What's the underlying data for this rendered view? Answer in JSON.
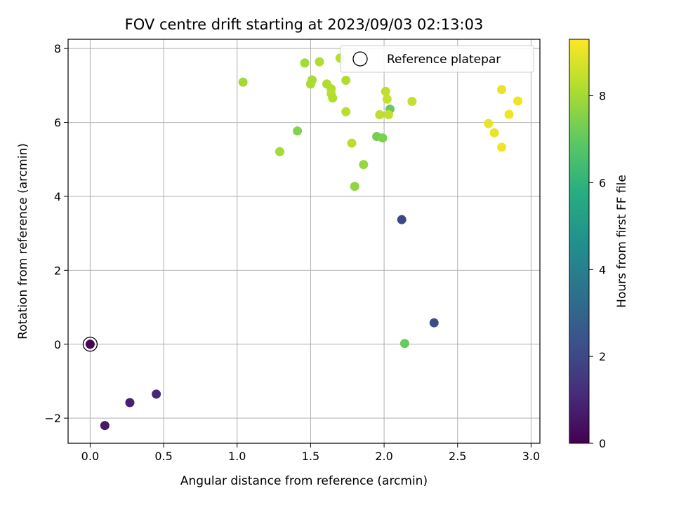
{
  "chart_data": {
    "type": "scatter",
    "title": "FOV centre drift starting at 2023/09/03 02:13:03",
    "xlabel": "Angular distance from reference (arcmin)",
    "ylabel": "Rotation from reference (arcmin)",
    "xlim": [
      -0.15,
      3.06
    ],
    "ylim": [
      -2.68,
      8.25
    ],
    "xticks": [
      "0.0",
      "0.5",
      "1.0",
      "1.5",
      "2.0",
      "2.5",
      "3.0"
    ],
    "yticks": [
      "−2",
      "0",
      "2",
      "4",
      "6",
      "8"
    ],
    "grid": true,
    "legend": {
      "position": "top-right",
      "entries": [
        "Reference platepar"
      ]
    },
    "reference_point": {
      "x": 0.0,
      "y": 0.0
    },
    "colorbar": {
      "label": "Hours from first FF file",
      "colormap": "viridis",
      "range": [
        0,
        9.3
      ],
      "ticks": [
        "0",
        "2",
        "4",
        "6",
        "8"
      ]
    },
    "points": [
      {
        "x": 0.0,
        "y": 0.0,
        "c": 0.1
      },
      {
        "x": 0.1,
        "y": -2.2,
        "c": 0.6
      },
      {
        "x": 0.27,
        "y": -1.58,
        "c": 0.8
      },
      {
        "x": 0.45,
        "y": -1.35,
        "c": 1.0
      },
      {
        "x": 2.12,
        "y": 3.37,
        "c": 2.0
      },
      {
        "x": 2.34,
        "y": 0.58,
        "c": 2.1
      },
      {
        "x": 2.14,
        "y": 0.02,
        "c": 7.1
      },
      {
        "x": 2.04,
        "y": 6.36,
        "c": 7.1
      },
      {
        "x": 1.95,
        "y": 5.62,
        "c": 7.3
      },
      {
        "x": 1.99,
        "y": 5.58,
        "c": 7.4
      },
      {
        "x": 1.41,
        "y": 5.77,
        "c": 7.5
      },
      {
        "x": 1.8,
        "y": 4.27,
        "c": 7.7
      },
      {
        "x": 1.86,
        "y": 4.86,
        "c": 7.8
      },
      {
        "x": 1.29,
        "y": 5.21,
        "c": 8.0
      },
      {
        "x": 1.04,
        "y": 7.09,
        "c": 8.0
      },
      {
        "x": 1.46,
        "y": 7.61,
        "c": 8.0
      },
      {
        "x": 1.5,
        "y": 7.04,
        "c": 8.1
      },
      {
        "x": 1.51,
        "y": 7.15,
        "c": 8.1
      },
      {
        "x": 1.56,
        "y": 7.64,
        "c": 8.2
      },
      {
        "x": 1.61,
        "y": 7.04,
        "c": 8.2
      },
      {
        "x": 1.64,
        "y": 6.91,
        "c": 8.2
      },
      {
        "x": 1.64,
        "y": 6.78,
        "c": 8.3
      },
      {
        "x": 1.65,
        "y": 6.66,
        "c": 8.2
      },
      {
        "x": 1.7,
        "y": 7.74,
        "c": 8.3
      },
      {
        "x": 1.74,
        "y": 7.14,
        "c": 8.2
      },
      {
        "x": 1.74,
        "y": 6.29,
        "c": 8.3
      },
      {
        "x": 1.78,
        "y": 5.44,
        "c": 8.3
      },
      {
        "x": 1.97,
        "y": 6.21,
        "c": 8.4
      },
      {
        "x": 2.01,
        "y": 6.84,
        "c": 8.4
      },
      {
        "x": 2.02,
        "y": 6.63,
        "c": 8.5
      },
      {
        "x": 2.03,
        "y": 6.21,
        "c": 8.5
      },
      {
        "x": 2.19,
        "y": 6.57,
        "c": 8.5
      },
      {
        "x": 2.71,
        "y": 5.97,
        "c": 9.0
      },
      {
        "x": 2.75,
        "y": 5.72,
        "c": 9.0
      },
      {
        "x": 2.8,
        "y": 6.89,
        "c": 9.0
      },
      {
        "x": 2.8,
        "y": 5.33,
        "c": 9.1
      },
      {
        "x": 2.85,
        "y": 6.22,
        "c": 9.1
      },
      {
        "x": 2.91,
        "y": 6.58,
        "c": 9.1
      }
    ]
  }
}
